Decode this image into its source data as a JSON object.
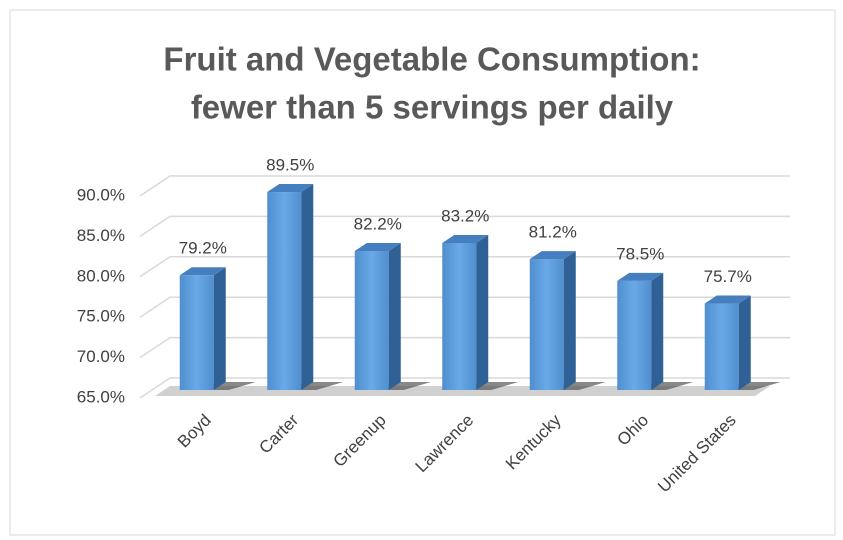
{
  "chart_data": {
    "type": "bar3d",
    "title": [
      "Fruit and Vegetable Consumption:",
      "fewer than 5 servings per daily"
    ],
    "categories": [
      "Boyd",
      "Carter",
      "Greenup",
      "Lawrence",
      "Kentucky",
      "Ohio",
      "United States"
    ],
    "values": [
      79.2,
      89.5,
      82.2,
      83.2,
      81.2,
      78.5,
      75.7
    ],
    "value_labels": [
      "79.2%",
      "89.5%",
      "82.2%",
      "83.2%",
      "81.2%",
      "78.5%",
      "75.7%"
    ],
    "color": "#5b9bd5",
    "ylim": [
      65,
      90
    ],
    "yticks": [
      {
        "value": 65,
        "label": "65.0%"
      },
      {
        "value": 70,
        "label": "70.0%"
      },
      {
        "value": 75,
        "label": "75.0%"
      },
      {
        "value": 80,
        "label": "80.0%"
      },
      {
        "value": 85,
        "label": "85.0%"
      },
      {
        "value": 90,
        "label": "90.0%"
      }
    ],
    "grid": true
  }
}
